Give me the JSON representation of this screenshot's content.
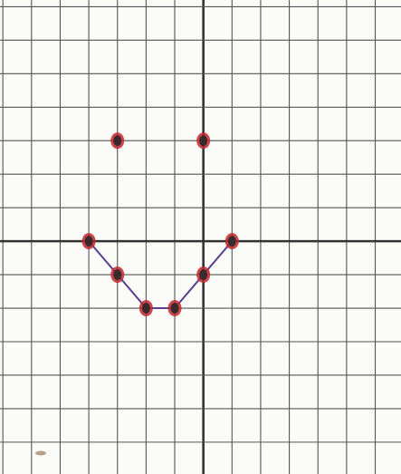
{
  "chart_data": {
    "type": "line",
    "xlim": [
      -7.1,
      6.9
    ],
    "ylim": [
      -6.95,
      7.2
    ],
    "xticks": [
      -7,
      -6,
      -5,
      -4,
      -3,
      -2,
      -1,
      0,
      1,
      2,
      3,
      4,
      5,
      6
    ],
    "yticks": [
      -6,
      -5,
      -4,
      -3,
      -2,
      -1,
      0,
      1,
      2,
      3,
      4,
      5,
      6,
      7
    ],
    "grid": true,
    "series": [
      {
        "x": [
          -4,
          -3,
          -2,
          -1,
          0,
          1
        ],
        "values": [
          0,
          -1,
          -2,
          -2,
          -1,
          0
        ],
        "line_color": "#5a3f8f",
        "marker_color": "#c4262e"
      },
      {
        "x": [
          -3,
          0
        ],
        "values": [
          3,
          3
        ],
        "marker_color": "#c4262e"
      }
    ]
  }
}
